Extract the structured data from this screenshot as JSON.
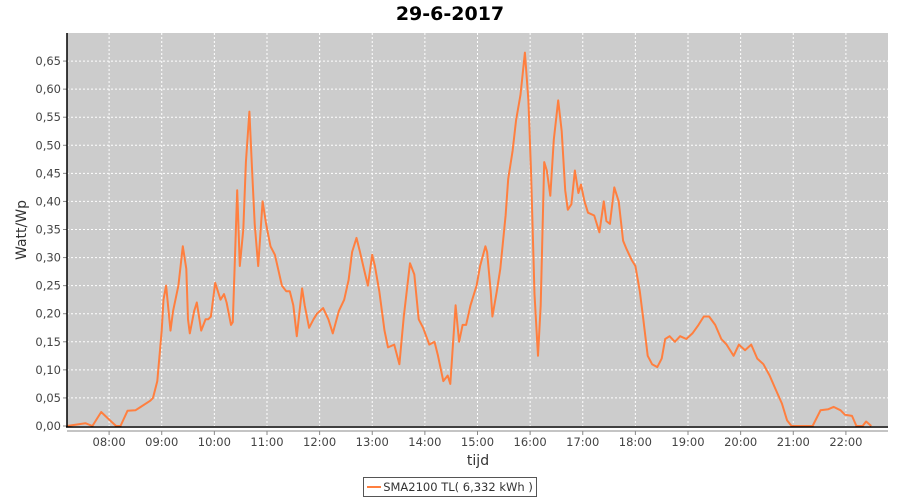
{
  "chart_data": {
    "type": "line",
    "title": "29-6-2017",
    "xlabel": "tijd",
    "ylabel": "Watt/Wp",
    "xlim": [
      "07:12",
      "22:48"
    ],
    "ylim": [
      0,
      0.7
    ],
    "grid": true,
    "legend_position": "bottom",
    "colors": {
      "series": "#ff7f3f",
      "plot_background": "#cccccc",
      "grid": "#ffffff"
    },
    "x_ticks": [
      "08:00",
      "09:00",
      "10:00",
      "11:00",
      "12:00",
      "13:00",
      "14:00",
      "15:00",
      "16:00",
      "17:00",
      "18:00",
      "19:00",
      "20:00",
      "21:00",
      "22:00"
    ],
    "y_ticks": [
      "0,00",
      "0,05",
      "0,10",
      "0,15",
      "0,20",
      "0,25",
      "0,30",
      "0,35",
      "0,40",
      "0,45",
      "0,50",
      "0,55",
      "0,60",
      "0,65"
    ],
    "series": [
      {
        "name": "SMA2100 TL( 6,332 kWh )",
        "points": [
          [
            "07:12",
            0
          ],
          [
            "07:33",
            0.005
          ],
          [
            "07:41",
            0
          ],
          [
            "07:51",
            0.025
          ],
          [
            "08:01",
            0.01
          ],
          [
            "08:08",
            0
          ],
          [
            "08:13",
            0
          ],
          [
            "08:21",
            0.027
          ],
          [
            "08:30",
            0.028
          ],
          [
            "08:35",
            0.033
          ],
          [
            "08:47",
            0.045
          ],
          [
            "08:50",
            0.05
          ],
          [
            "08:55",
            0.08
          ],
          [
            "09:00",
            0.17
          ],
          [
            "09:02",
            0.225
          ],
          [
            "09:05",
            0.25
          ],
          [
            "09:10",
            0.17
          ],
          [
            "09:13",
            0.205
          ],
          [
            "09:19",
            0.25
          ],
          [
            "09:24",
            0.32
          ],
          [
            "09:28",
            0.28
          ],
          [
            "09:30",
            0.19
          ],
          [
            "09:32",
            0.165
          ],
          [
            "09:37",
            0.205
          ],
          [
            "09:40",
            0.22
          ],
          [
            "09:45",
            0.17
          ],
          [
            "09:50",
            0.19
          ],
          [
            "09:53",
            0.19
          ],
          [
            "09:56",
            0.195
          ],
          [
            "10:01",
            0.255
          ],
          [
            "10:07",
            0.225
          ],
          [
            "10:11",
            0.235
          ],
          [
            "10:14",
            0.22
          ],
          [
            "10:19",
            0.18
          ],
          [
            "10:21",
            0.185
          ],
          [
            "10:26",
            0.42
          ],
          [
            "10:29",
            0.285
          ],
          [
            "10:33",
            0.35
          ],
          [
            "10:36",
            0.47
          ],
          [
            "10:40",
            0.56
          ],
          [
            "10:43",
            0.455
          ],
          [
            "10:46",
            0.36
          ],
          [
            "10:50",
            0.285
          ],
          [
            "10:55",
            0.4
          ],
          [
            "10:59",
            0.36
          ],
          [
            "11:04",
            0.32
          ],
          [
            "11:09",
            0.305
          ],
          [
            "11:17",
            0.25
          ],
          [
            "11:22",
            0.24
          ],
          [
            "11:26",
            0.24
          ],
          [
            "11:30",
            0.215
          ],
          [
            "11:34",
            0.16
          ],
          [
            "11:40",
            0.245
          ],
          [
            "11:43",
            0.215
          ],
          [
            "11:48",
            0.175
          ],
          [
            "11:53",
            0.19
          ],
          [
            "11:57",
            0.2
          ],
          [
            "12:04",
            0.21
          ],
          [
            "12:10",
            0.19
          ],
          [
            "12:15",
            0.165
          ],
          [
            "12:22",
            0.205
          ],
          [
            "12:28",
            0.225
          ],
          [
            "12:33",
            0.26
          ],
          [
            "12:37",
            0.31
          ],
          [
            "12:42",
            0.335
          ],
          [
            "12:46",
            0.31
          ],
          [
            "12:52",
            0.27
          ],
          [
            "12:55",
            0.25
          ],
          [
            "13:00",
            0.305
          ],
          [
            "13:03",
            0.285
          ],
          [
            "13:08",
            0.24
          ],
          [
            "13:14",
            0.17
          ],
          [
            "13:18",
            0.14
          ],
          [
            "13:25",
            0.145
          ],
          [
            "13:31",
            0.11
          ],
          [
            "13:36",
            0.195
          ],
          [
            "13:43",
            0.29
          ],
          [
            "13:48",
            0.27
          ],
          [
            "13:53",
            0.19
          ],
          [
            "13:58",
            0.175
          ],
          [
            "14:05",
            0.145
          ],
          [
            "14:11",
            0.15
          ],
          [
            "14:15",
            0.125
          ],
          [
            "14:21",
            0.08
          ],
          [
            "14:26",
            0.09
          ],
          [
            "14:29",
            0.075
          ],
          [
            "14:35",
            0.215
          ],
          [
            "14:39",
            0.15
          ],
          [
            "14:43",
            0.18
          ],
          [
            "14:47",
            0.18
          ],
          [
            "14:52",
            0.215
          ],
          [
            "14:59",
            0.25
          ],
          [
            "15:03",
            0.285
          ],
          [
            "15:09",
            0.32
          ],
          [
            "15:11",
            0.31
          ],
          [
            "15:15",
            0.24
          ],
          [
            "15:17",
            0.195
          ],
          [
            "15:22",
            0.24
          ],
          [
            "15:26",
            0.28
          ],
          [
            "15:32",
            0.375
          ],
          [
            "15:35",
            0.44
          ],
          [
            "15:40",
            0.49
          ],
          [
            "15:44",
            0.545
          ],
          [
            "15:49",
            0.59
          ],
          [
            "15:54",
            0.665
          ],
          [
            "15:58",
            0.58
          ],
          [
            "16:01",
            0.455
          ],
          [
            "16:05",
            0.235
          ],
          [
            "16:09",
            0.125
          ],
          [
            "16:12",
            0.215
          ],
          [
            "16:16",
            0.47
          ],
          [
            "16:19",
            0.455
          ],
          [
            "16:23",
            0.41
          ],
          [
            "16:27",
            0.51
          ],
          [
            "16:32",
            0.58
          ],
          [
            "16:36",
            0.525
          ],
          [
            "16:40",
            0.42
          ],
          [
            "16:43",
            0.385
          ],
          [
            "16:47",
            0.395
          ],
          [
            "16:51",
            0.455
          ],
          [
            "16:55",
            0.415
          ],
          [
            "16:58",
            0.43
          ],
          [
            "17:02",
            0.4
          ],
          [
            "17:06",
            0.38
          ],
          [
            "17:13",
            0.375
          ],
          [
            "17:19",
            0.345
          ],
          [
            "17:24",
            0.4
          ],
          [
            "17:27",
            0.365
          ],
          [
            "17:31",
            0.36
          ],
          [
            "17:36",
            0.425
          ],
          [
            "17:41",
            0.4
          ],
          [
            "17:46",
            0.33
          ],
          [
            "17:50",
            0.315
          ],
          [
            "17:56",
            0.295
          ],
          [
            "18:00",
            0.285
          ],
          [
            "18:05",
            0.24
          ],
          [
            "18:09",
            0.19
          ],
          [
            "18:14",
            0.125
          ],
          [
            "18:19",
            0.11
          ],
          [
            "18:25",
            0.105
          ],
          [
            "18:30",
            0.12
          ],
          [
            "18:34",
            0.155
          ],
          [
            "18:39",
            0.16
          ],
          [
            "18:45",
            0.15
          ],
          [
            "18:51",
            0.16
          ],
          [
            "18:58",
            0.155
          ],
          [
            "19:05",
            0.165
          ],
          [
            "19:12",
            0.18
          ],
          [
            "19:18",
            0.195
          ],
          [
            "19:24",
            0.195
          ],
          [
            "19:31",
            0.18
          ],
          [
            "19:38",
            0.155
          ],
          [
            "19:44",
            0.145
          ],
          [
            "19:52",
            0.125
          ],
          [
            "19:58",
            0.145
          ],
          [
            "20:05",
            0.135
          ],
          [
            "20:12",
            0.145
          ],
          [
            "20:19",
            0.12
          ],
          [
            "20:26",
            0.11
          ],
          [
            "20:33",
            0.09
          ],
          [
            "20:40",
            0.065
          ],
          [
            "20:47",
            0.04
          ],
          [
            "20:53",
            0.01
          ],
          [
            "20:58",
            0
          ],
          [
            "21:22",
            0
          ],
          [
            "21:31",
            0.028
          ],
          [
            "21:40",
            0.03
          ],
          [
            "21:46",
            0.034
          ],
          [
            "21:54",
            0.028
          ],
          [
            "21:59",
            0.02
          ],
          [
            "22:07",
            0.018
          ],
          [
            "22:12",
            0
          ],
          [
            "22:19",
            0
          ],
          [
            "22:23",
            0.008
          ],
          [
            "22:29",
            0
          ]
        ]
      }
    ]
  }
}
